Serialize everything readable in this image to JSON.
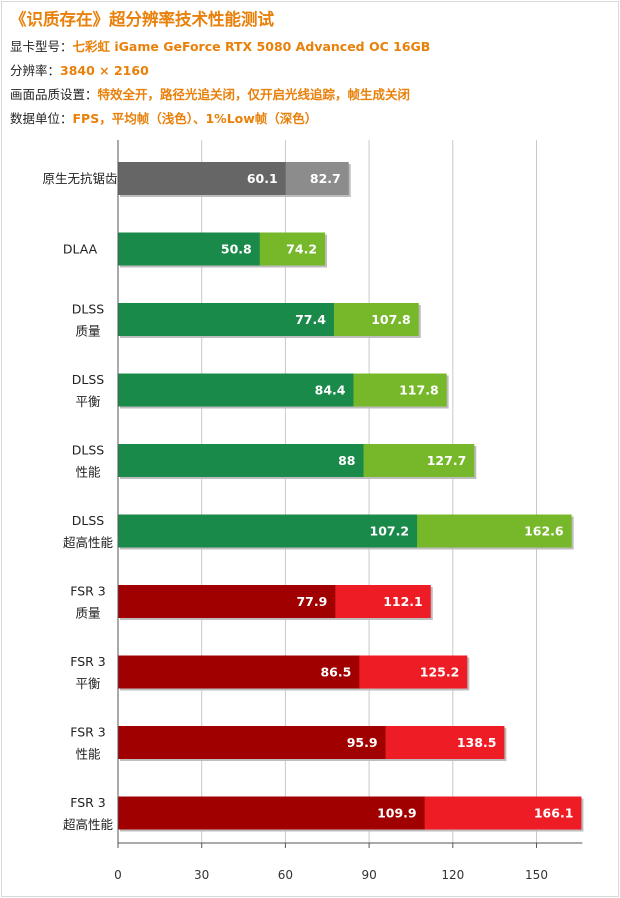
{
  "header": {
    "title": "《识质存在》超分辨率技术性能测试",
    "gpu_label": "显卡型号：",
    "gpu_value": "七彩虹 iGame GeForce RTX 5080 Advanced OC 16GB",
    "res_label": "分辨率：",
    "res_value": "3840 × 2160",
    "quality_label": "画面品质设置：",
    "quality_value": "特效全开，路径光追关闭，仅开启光线追踪，帧生成关闭",
    "unit_label": "数据单位：",
    "unit_value": "FPS，平均帧（浅色）、1%Low帧（深色）"
  },
  "colors": {
    "accent": "#e8800a",
    "native_low": "#666666",
    "native_avg": "#8c8c8c",
    "nvidia_low": "#1a8a4a",
    "nvidia_avg": "#76b82a",
    "amd_low": "#a00000",
    "amd_avg": "#ee1c25",
    "grid": "#c8c8c8"
  },
  "chart_data": {
    "type": "bar",
    "orientation": "horizontal",
    "stacked_overlay": true,
    "title": "《识质存在》超分辨率技术性能测试",
    "xlabel": "",
    "ylabel": "",
    "xlim": [
      0,
      165
    ],
    "xticks": [
      0,
      30,
      60,
      90,
      120,
      150
    ],
    "categories": [
      [
        "原生无抗锯齿"
      ],
      [
        "DLAA"
      ],
      [
        "DLSS",
        "质量"
      ],
      [
        "DLSS",
        "平衡"
      ],
      [
        "DLSS",
        "性能"
      ],
      [
        "DLSS",
        "超高性能"
      ],
      [
        "FSR 3",
        "质量"
      ],
      [
        "FSR 3",
        "平衡"
      ],
      [
        "FSR 3",
        "性能"
      ],
      [
        "FSR 3",
        "超高性能"
      ]
    ],
    "groups": [
      "native",
      "nvidia",
      "nvidia",
      "nvidia",
      "nvidia",
      "nvidia",
      "amd",
      "amd",
      "amd",
      "amd"
    ],
    "series": [
      {
        "name": "1%Low帧（深色）",
        "values": [
          60.1,
          50.8,
          77.4,
          84.4,
          88,
          107.2,
          77.9,
          86.5,
          95.9,
          109.9
        ]
      },
      {
        "name": "平均帧（浅色）",
        "values": [
          82.7,
          74.2,
          107.8,
          117.8,
          127.7,
          162.6,
          112.1,
          125.2,
          138.5,
          166.1
        ]
      }
    ]
  }
}
